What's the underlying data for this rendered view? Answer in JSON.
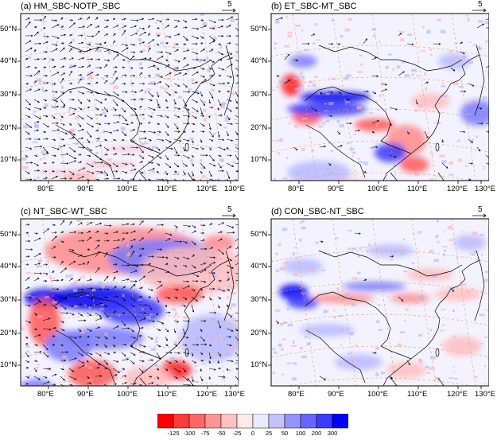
{
  "panels": [
    {
      "id": "a",
      "title": "(a) HM_SBC-NOTP_SBC",
      "ref_vector": "5"
    },
    {
      "id": "b",
      "title": "(b) ET_SBC-MT_SBC",
      "ref_vector": "5"
    },
    {
      "id": "c",
      "title": "(c) NT_SBC-WT_SBC",
      "ref_vector": "5"
    },
    {
      "id": "d",
      "title": "(d) CON_SBC-NT_SBC",
      "ref_vector": "5"
    }
  ],
  "axes": {
    "lon_labels": [
      "80°E",
      "90°E",
      "100°E",
      "110°E",
      "120°E",
      "130°E"
    ],
    "lat_labels": [
      "50°N",
      "40°N",
      "30°N",
      "20°N",
      "10°N"
    ]
  },
  "colorbar": {
    "ticks": [
      "-125",
      "-100",
      "-75",
      "-50",
      "-25",
      "0",
      "25",
      "50",
      "100",
      "200",
      "300"
    ],
    "colors": [
      "#ff0000",
      "#ff3b3b",
      "#ff6666",
      "#ff9494",
      "#ffc2c2",
      "#ffeaea",
      "#eaeaff",
      "#c2c2ff",
      "#9494ff",
      "#6666ff",
      "#3b3bff",
      "#0000ff"
    ]
  }
}
